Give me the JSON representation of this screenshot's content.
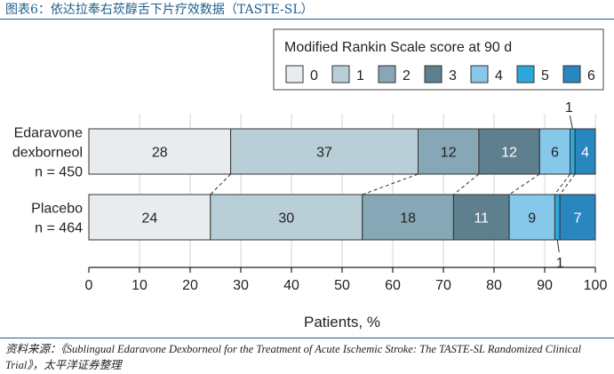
{
  "figure_title": "图表6：依达拉奉右莰醇舌下片疗效数据（TASTE-SL）",
  "source_note": "资料来源：《Sublingual Edaravone Dexborneol for the Treatment of Acute Ischemic Stroke: The TASTE-SL Randomized Clinical Trial》，太平洋证券整理",
  "chart_data": {
    "type": "bar",
    "orientation": "horizontal",
    "stacked": true,
    "legend_title": "Modified Rankin Scale score at 90 d",
    "legend_position": "top-right",
    "categories": [
      "0",
      "1",
      "2",
      "3",
      "4",
      "5",
      "6"
    ],
    "colors": [
      "#e8ecef",
      "#b9cfd8",
      "#86a8b6",
      "#5e7f8d",
      "#85c8ea",
      "#2ea6da",
      "#2a86bf"
    ],
    "series": [
      {
        "label_lines": [
          "Edaravone",
          "dexborneol",
          "n = 450"
        ],
        "values": [
          28,
          37,
          12,
          12,
          6,
          1,
          4
        ]
      },
      {
        "label_lines": [
          "Placebo",
          "n = 464"
        ],
        "values": [
          24,
          30,
          18,
          11,
          9,
          1,
          7
        ]
      }
    ],
    "callouts": [
      "1",
      "1"
    ],
    "xlabel": "Patients, %",
    "xlim": [
      0,
      100
    ],
    "xticks": [
      "0",
      "10",
      "20",
      "30",
      "40",
      "50",
      "60",
      "70",
      "80",
      "90",
      "100"
    ],
    "grid": true
  }
}
